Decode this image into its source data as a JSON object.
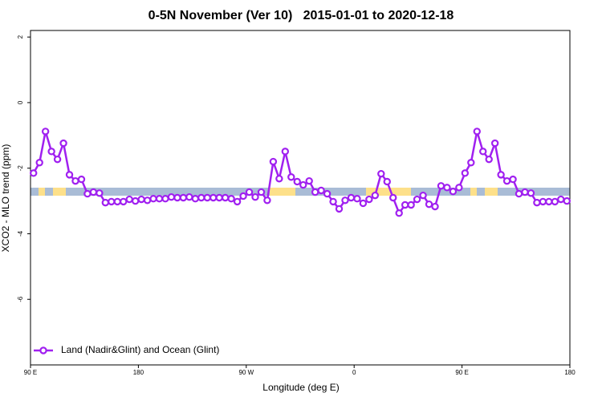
{
  "chart_data": {
    "type": "line",
    "title": "0-5N November (Ver 10)   2015-01-01 to 2020-12-18",
    "x_label": "Longitude (deg E)",
    "y_label": "XCO2 - MLO trend (ppm)",
    "xlim": [
      90,
      540
    ],
    "ylim": [
      -8,
      2.2
    ],
    "xticks": [
      {
        "value": 90,
        "label": "90 E"
      },
      180,
      {
        "value": 270,
        "label": "90 W"
      },
      {
        "value": 360,
        "label": "0"
      },
      {
        "value": 450,
        "label": "90 E"
      },
      {
        "value": 540,
        "label": "180"
      }
    ],
    "yticks": [
      2,
      0,
      -2,
      -4,
      -6
    ],
    "legend": "bottomleft",
    "x": [
      92.5,
      97.5,
      102.5,
      107.5,
      112.5,
      117.5,
      122.5,
      127.5,
      132.5,
      137.5,
      142.5,
      147.5,
      152.5,
      157.5,
      162.5,
      167.5,
      172.5,
      177.5,
      182.5,
      187.5,
      192.5,
      197.5,
      202.5,
      207.5,
      212.5,
      217.5,
      222.5,
      227.5,
      232.5,
      237.5,
      242.5,
      247.5,
      252.5,
      257.5,
      262.5,
      267.5,
      272.5,
      277.5,
      282.5,
      287.5,
      292.5,
      297.5,
      302.5,
      307.5,
      312.5,
      317.5,
      322.5,
      327.5,
      332.5,
      337.5,
      342.5,
      347.5,
      352.5,
      357.5,
      362.5,
      367.5,
      372.5,
      377.5,
      382.5,
      387.5,
      392.5,
      397.5,
      402.5,
      407.5,
      412.5,
      417.5,
      422.5,
      427.5,
      432.5,
      437.5,
      442.5,
      447.5,
      452.5,
      457.5,
      462.5,
      467.5,
      472.5,
      477.5,
      482.5,
      487.5,
      492.5,
      497.5,
      502.5,
      507.5,
      512.5,
      517.5,
      522.5,
      527.5,
      532.5,
      537.5
    ],
    "series": [
      {
        "name": "Land (Nadir&Glint) and Ocean (Glint)",
        "color": "#a020f0",
        "values": [
          -2.15,
          -1.83,
          -0.88,
          -1.49,
          -1.73,
          -1.24,
          -2.2,
          -2.39,
          -2.34,
          -2.78,
          -2.73,
          -2.76,
          -3.05,
          -3.02,
          -3.02,
          -3.02,
          -2.95,
          -3.0,
          -2.95,
          -2.98,
          -2.93,
          -2.93,
          -2.93,
          -2.88,
          -2.9,
          -2.9,
          -2.88,
          -2.93,
          -2.9,
          -2.9,
          -2.9,
          -2.9,
          -2.9,
          -2.93,
          -3.02,
          -2.85,
          -2.73,
          -2.88,
          -2.73,
          -2.98,
          -1.8,
          -2.32,
          -1.49,
          -2.27,
          -2.41,
          -2.51,
          -2.39,
          -2.73,
          -2.68,
          -2.78,
          -3.02,
          -3.24,
          -2.98,
          -2.9,
          -2.93,
          -3.07,
          -2.95,
          -2.83,
          -2.17,
          -2.41,
          -2.9,
          -3.37,
          -3.12,
          -3.12,
          -2.95,
          -2.83,
          -3.1,
          -3.17,
          -2.54,
          -2.59,
          -2.71,
          -2.59,
          -2.15,
          -1.83,
          -0.88,
          -1.49,
          -1.73,
          -1.24,
          -2.2,
          -2.39,
          -2.34,
          -2.78,
          -2.73,
          -2.76,
          -3.05,
          -3.02,
          -3.02,
          -3.02,
          -2.95,
          -3.0
        ]
      }
    ]
  }
}
